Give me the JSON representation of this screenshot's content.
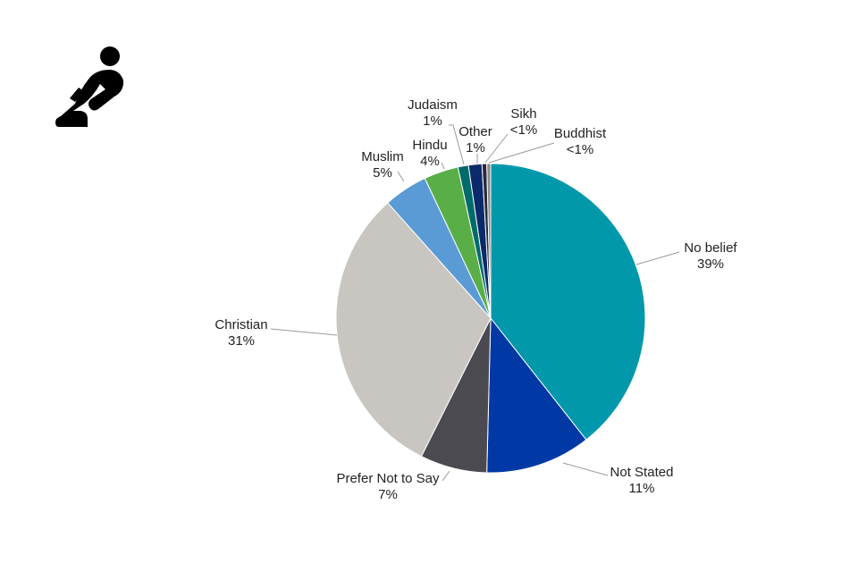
{
  "icon": {
    "name": "praying-person-icon",
    "color": "#000000"
  },
  "chart_data": {
    "type": "pie",
    "title": "",
    "start": "top",
    "direction": "clockwise",
    "slices": [
      {
        "name": "No belief",
        "label": "39%",
        "value": 39.4,
        "color": "#0098AA"
      },
      {
        "name": "Not Stated",
        "label": "11%",
        "value": 11.0,
        "color": "#0039A6"
      },
      {
        "name": "Prefer Not to Say",
        "label": "7%",
        "value": 7.0,
        "color": "#4A4A50"
      },
      {
        "name": "Christian",
        "label": "31%",
        "value": 31.0,
        "color": "#C9C6C1"
      },
      {
        "name": "Muslim",
        "label": "5%",
        "value": 4.6,
        "color": "#5B9BD5"
      },
      {
        "name": "Hindu",
        "label": "4%",
        "value": 3.6,
        "color": "#5AAE47"
      },
      {
        "name": "Judaism",
        "label": "1%",
        "value": 1.1,
        "color": "#006B6B"
      },
      {
        "name": "Other",
        "label": "1%",
        "value": 1.4,
        "color": "#0A2A6B"
      },
      {
        "name": "Sikh",
        "label": "<1%",
        "value": 0.5,
        "color": "#2A2A3A"
      },
      {
        "name": "Buddhist",
        "label": "<1%",
        "value": 0.4,
        "color": "#8A8A8A"
      }
    ]
  }
}
